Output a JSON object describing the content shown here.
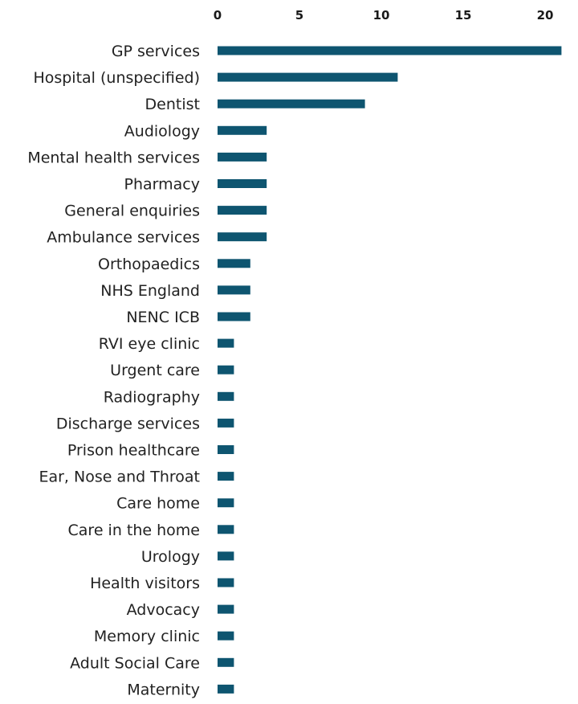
{
  "chart_data": {
    "type": "bar",
    "orientation": "horizontal",
    "categories": [
      "GP services",
      "Hospital (unspecified)",
      "Dentist",
      "Audiology",
      "Mental health services",
      "Pharmacy",
      "General enquiries",
      "Ambulance services",
      "Orthopaedics",
      "NHS England",
      "NENC ICB",
      "RVI eye clinic",
      "Urgent care",
      "Radiography",
      "Discharge services",
      "Prison healthcare",
      "Ear, Nose and Throat",
      "Care home",
      "Care in the home",
      "Urology",
      "Health visitors",
      "Advocacy",
      "Memory clinic",
      "Adult Social Care",
      "Maternity"
    ],
    "values": [
      21,
      11,
      9,
      3,
      3,
      3,
      3,
      3,
      2,
      2,
      2,
      1,
      1,
      1,
      1,
      1,
      1,
      1,
      1,
      1,
      1,
      1,
      1,
      1,
      1
    ],
    "xticks": [
      "0",
      "5",
      "10",
      "15",
      "20"
    ],
    "xlim": [
      0,
      21
    ],
    "axis_position": "top",
    "grid": false,
    "legend": "none",
    "bar_color": "#0e5570"
  }
}
